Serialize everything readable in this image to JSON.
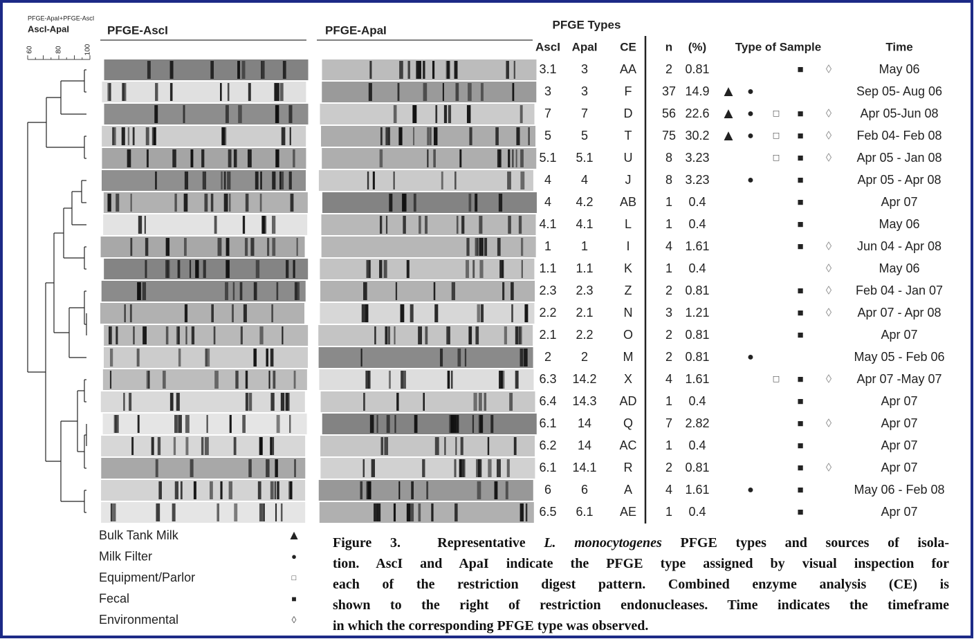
{
  "header": {
    "combined_label": "PFGE-ApaI+PFGE-AscI",
    "dendrogram_label": "AscI-ApaI",
    "scale_labels": [
      "60",
      "80",
      "100"
    ],
    "gel_asci_title": "PFGE-AscI",
    "gel_apai_title": "PFGE-ApaI",
    "types_title": "PFGE Types"
  },
  "table": {
    "columns": [
      "AscI",
      "ApaI",
      "CE",
      "n",
      "(%)",
      "Type of Sample",
      "Time"
    ],
    "rows": [
      {
        "asci": 3.1,
        "apai": 3,
        "ce": "AA",
        "n": 2,
        "pct": 0.81,
        "samples": [
          "■",
          "◊"
        ],
        "time": "May 06"
      },
      {
        "asci": 3,
        "apai": 3,
        "ce": "F",
        "n": 37,
        "pct": 14.9,
        "samples": [
          "▲",
          "●"
        ],
        "time": "Sep 05- Aug 06"
      },
      {
        "asci": 7,
        "apai": 7,
        "ce": "D",
        "n": 56,
        "pct": 22.6,
        "samples": [
          "▲",
          "●",
          "□",
          "■",
          "◊"
        ],
        "time": "Apr 05-Jun 08"
      },
      {
        "asci": 5,
        "apai": 5,
        "ce": "T",
        "n": 75,
        "pct": 30.2,
        "samples": [
          "▲",
          "●",
          "□",
          "■",
          "◊"
        ],
        "time": "Feb 04- Feb 08"
      },
      {
        "asci": 5.1,
        "apai": 5.1,
        "ce": "U",
        "n": 8,
        "pct": 3.23,
        "samples": [
          "□",
          "■",
          "◊"
        ],
        "time": "Apr 05 - Jan 08"
      },
      {
        "asci": 4,
        "apai": 4,
        "ce": "J",
        "n": 8,
        "pct": 3.23,
        "samples": [
          "●",
          "■"
        ],
        "time": "Apr 05 - Apr 08"
      },
      {
        "asci": 4,
        "apai": 4.2,
        "ce": "AB",
        "n": 1,
        "pct": 0.4,
        "samples": [
          "■"
        ],
        "time": "Apr 07"
      },
      {
        "asci": 4.1,
        "apai": 4.1,
        "ce": "L",
        "n": 1,
        "pct": 0.4,
        "samples": [
          "■"
        ],
        "time": "May 06"
      },
      {
        "asci": 1,
        "apai": 1,
        "ce": "I",
        "n": 4,
        "pct": 1.61,
        "samples": [
          "■",
          "◊"
        ],
        "time": "Jun 04 - Apr 08"
      },
      {
        "asci": 1.1,
        "apai": 1.1,
        "ce": "K",
        "n": 1,
        "pct": 0.4,
        "samples": [
          "◊"
        ],
        "time": "May 06"
      },
      {
        "asci": 2.3,
        "apai": 2.3,
        "ce": "Z",
        "n": 2,
        "pct": 0.81,
        "samples": [
          "■",
          "◊"
        ],
        "time": "Feb 04 - Jan 07"
      },
      {
        "asci": 2.2,
        "apai": 2.1,
        "ce": "N",
        "n": 3,
        "pct": 1.21,
        "samples": [
          "■",
          "◊"
        ],
        "time": "Apr 07 - Apr 08"
      },
      {
        "asci": 2.1,
        "apai": 2.2,
        "ce": "O",
        "n": 2,
        "pct": 0.81,
        "samples": [
          "■"
        ],
        "time": "Apr 07"
      },
      {
        "asci": 2,
        "apai": 2,
        "ce": "M",
        "n": 2,
        "pct": 0.81,
        "samples": [
          "●"
        ],
        "time": "May 05 - Feb 06"
      },
      {
        "asci": 6.3,
        "apai": 14.2,
        "ce": "X",
        "n": 4,
        "pct": 1.61,
        "samples": [
          "□",
          "■",
          "◊"
        ],
        "time": "Apr 07 -May 07"
      },
      {
        "asci": 6.4,
        "apai": 14.3,
        "ce": "AD",
        "n": 1,
        "pct": 0.4,
        "samples": [
          "■"
        ],
        "time": "Apr 07"
      },
      {
        "asci": 6.1,
        "apai": 14,
        "ce": "Q",
        "n": 7,
        "pct": 2.82,
        "samples": [
          "■",
          "◊"
        ],
        "time": "Apr 07"
      },
      {
        "asci": 6.2,
        "apai": 14,
        "ce": "AC",
        "n": 1,
        "pct": 0.4,
        "samples": [
          "■"
        ],
        "time": "Apr 07"
      },
      {
        "asci": 6.1,
        "apai": 14.1,
        "ce": "R",
        "n": 2,
        "pct": 0.81,
        "samples": [
          "■",
          "◊"
        ],
        "time": "Apr 07"
      },
      {
        "asci": 6,
        "apai": 6,
        "ce": "A",
        "n": 4,
        "pct": 1.61,
        "samples": [
          "●",
          "■"
        ],
        "time": "May 06 - Feb 08"
      },
      {
        "asci": 6.5,
        "apai": 6.1,
        "ce": "AE",
        "n": 1,
        "pct": 0.4,
        "samples": [
          "■"
        ],
        "time": "Apr 07"
      }
    ]
  },
  "legend": [
    {
      "label": "Bulk Tank Milk",
      "symbol": "▲"
    },
    {
      "label": "Milk Filter",
      "symbol": "●"
    },
    {
      "label": "Equipment/Parlor",
      "symbol": "□"
    },
    {
      "label": "Fecal",
      "symbol": "■"
    },
    {
      "label": "Environmental",
      "symbol": "◊"
    }
  ],
  "caption": {
    "lines": [
      {
        "lead": "Figure 3.  Representative ",
        "italic": "L. monocytogenes",
        "tail": " PFGE types and sources of isola-"
      },
      "tion. AscI and ApaI indicate the PFGE type assigned by visual inspection for",
      "each of the restriction digest pattern. Combined enzyme analysis (CE) is",
      "shown to the right of restriction endonucleases. Time indicates the timeframe",
      "in which the corresponding PFGE type was observed."
    ]
  }
}
